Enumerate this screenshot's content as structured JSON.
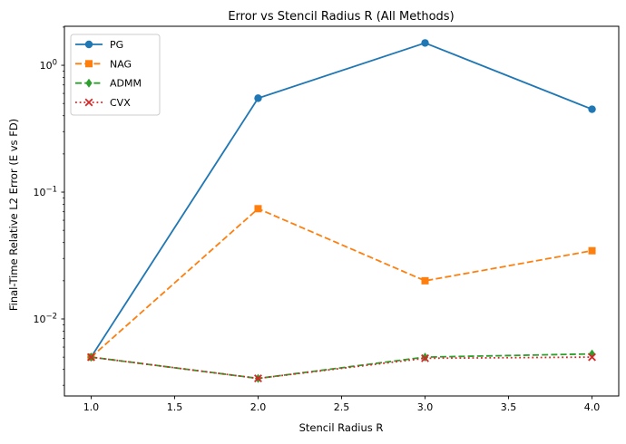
{
  "figure": {
    "background": "#ffffff",
    "spine_color": "#000000",
    "legend_border_color": "#cccccc"
  },
  "chart_data": {
    "type": "line",
    "title": "Error vs Stencil Radius R (All Methods)",
    "xlabel": "Stencil Radius R",
    "ylabel": "Final-Time Relative L2 Error (E vs FD)",
    "yscale": "log",
    "grid": false,
    "legend_position": "upper left",
    "x": [
      1.0,
      2.0,
      3.0,
      4.0
    ],
    "series": [
      {
        "name": "PG",
        "color": "#1f77b4",
        "linestyle": "solid",
        "marker": "circle",
        "values": [
          0.005,
          0.55,
          1.5,
          0.45
        ]
      },
      {
        "name": "NAG",
        "color": "#ff7f0e",
        "linestyle": "dashed",
        "marker": "square",
        "values": [
          0.005,
          0.074,
          0.02,
          0.0345
        ]
      },
      {
        "name": "ADMM",
        "color": "#2ca02c",
        "linestyle": "dashed",
        "marker": "diamond",
        "values": [
          0.005,
          0.0034,
          0.005,
          0.0053
        ]
      },
      {
        "name": "CVX",
        "color": "#d62728",
        "linestyle": "dotted",
        "marker": "x",
        "values": [
          0.005,
          0.0034,
          0.0049,
          0.005
        ]
      }
    ],
    "x_ticks": [
      "1.0",
      "1.5",
      "2.0",
      "2.5",
      "3.0",
      "3.5",
      "4.0"
    ],
    "y_ticks": [
      {
        "value": 1,
        "base": "10",
        "exp": "0"
      },
      {
        "value": 0.1,
        "base": "10",
        "exp": "−1"
      },
      {
        "value": 0.01,
        "base": "10",
        "exp": "−2"
      }
    ],
    "xlim": [
      0.84,
      4.16
    ],
    "ylim": [
      0.00247,
      2.03
    ]
  }
}
